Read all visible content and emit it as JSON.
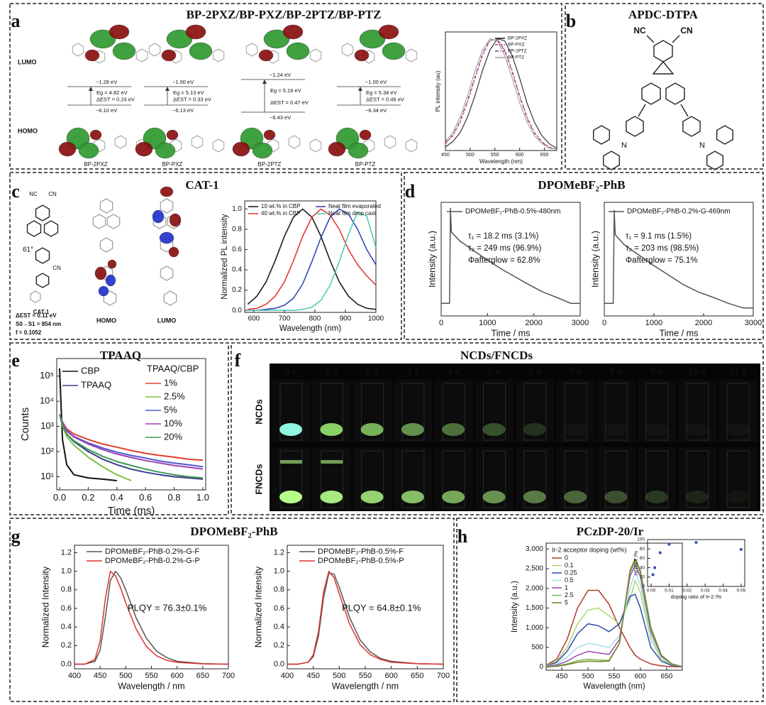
{
  "panels": [
    {
      "label": "a",
      "title": "BP-2PXZ/BP-PXZ/BP-2PTZ/BP-PTZ"
    },
    {
      "label": "b",
      "title": "APDC-DTPA"
    },
    {
      "label": "c",
      "title": "CAT-1"
    },
    {
      "label": "d",
      "title": "DPOMeBF₂-PhB"
    },
    {
      "label": "e",
      "title": "TPAAQ"
    },
    {
      "label": "f",
      "title": "NCDs/FNCDs"
    },
    {
      "label": "g",
      "title": "DPOMeBF₂-PhB"
    },
    {
      "label": "h",
      "title": "PCzDP-20/Ir"
    }
  ],
  "orbitals": {
    "lumo": "LUMO",
    "homo": "HOMO",
    "molecules": [
      {
        "name": "BP-2PXZ",
        "lumo": "−1.28 eV",
        "gap": "Eg = 4.82 eV",
        "dest": "ΔEST = 0.24 eV",
        "homo": "−6.10 eV"
      },
      {
        "name": "BP-PXZ",
        "lumo": "−1.00 eV",
        "gap": "Eg = 5.13 eV",
        "dest": "ΔEST = 0.33 eV",
        "homo": "−6.13 eV"
      },
      {
        "name": "BP-2PTZ",
        "lumo": "−1.24 eV",
        "gap": "Eg = 5.19 eV",
        "dest": "ΔEST = 0.47 eV",
        "homo": "−6.43 eV"
      },
      {
        "name": "BP-PTZ",
        "lumo": "−1.00 eV",
        "gap": "Eg = 5.34 eV",
        "dest": "ΔEST = 0.46 eV",
        "homo": "−6.34 eV"
      }
    ]
  },
  "apdc": {
    "nc": "NC",
    "cn": "CN",
    "n": "N"
  },
  "cat1": {
    "nc": "NC",
    "cn": "CN",
    "angle": "61°",
    "name": "CAT-1",
    "dest": "ΔEST = 0.11 eV",
    "s0s1": "S0→S1 = 854 nm",
    "f": "f = 0.1052",
    "homo": "HOMO",
    "lumo": "LUMO"
  },
  "photos": {
    "times": [
      "0 s",
      "1 s",
      "2 s",
      "3 s",
      "4 s",
      "5 s",
      "6 s",
      "7 s",
      "8 s",
      "9 s",
      "10 s",
      "11 s"
    ],
    "rows": [
      "NCDs",
      "FNCDs"
    ]
  },
  "chart_data": [
    {
      "type": "line",
      "xlabel": "Wavelength (nm)",
      "ylabel": "PL intensity (au)",
      "xlim": [
        450,
        675
      ],
      "ylim": [
        0,
        1.05
      ],
      "xticks": [
        450,
        500,
        550,
        600,
        650
      ],
      "x": [
        450,
        465,
        480,
        495,
        510,
        525,
        540,
        555,
        570,
        585,
        600,
        615,
        630,
        645,
        660,
        675
      ],
      "series": [
        {
          "name": "BP-2PXZ",
          "color": "#111111",
          "line_style": "solid",
          "values": [
            0.03,
            0.08,
            0.16,
            0.3,
            0.49,
            0.71,
            0.89,
            0.99,
            0.97,
            0.84,
            0.64,
            0.42,
            0.25,
            0.13,
            0.06,
            0.02
          ]
        },
        {
          "name": "BP-PXZ",
          "color": "#c0407a",
          "line_style": "dashed",
          "values": [
            0.06,
            0.13,
            0.25,
            0.43,
            0.64,
            0.84,
            0.97,
            0.99,
            0.89,
            0.71,
            0.49,
            0.3,
            0.16,
            0.08,
            0.03,
            0.01
          ]
        },
        {
          "name": "BP-2PTZ",
          "color": "#8a3a8a",
          "line_style": "dashdot",
          "values": [
            0.07,
            0.14,
            0.27,
            0.45,
            0.66,
            0.86,
            0.98,
            0.98,
            0.88,
            0.69,
            0.47,
            0.28,
            0.15,
            0.07,
            0.03,
            0.01
          ]
        },
        {
          "name": "BP-PTZ",
          "color": "#999999",
          "line_style": "solid",
          "values": [
            0.08,
            0.16,
            0.3,
            0.49,
            0.71,
            0.89,
            0.99,
            0.97,
            0.84,
            0.64,
            0.42,
            0.25,
            0.13,
            0.06,
            0.02,
            0.01
          ]
        }
      ]
    },
    {
      "type": "line",
      "xlabel": "Wavelength (nm)",
      "ylabel": "Normalized PL intensity",
      "xlim": [
        570,
        1000
      ],
      "ylim": [
        -0.02,
        1.08
      ],
      "xticks": [
        600,
        700,
        800,
        900,
        1000
      ],
      "yticks": [
        {
          "value": 0,
          "label": "0.0"
        },
        0.2,
        0.4,
        0.6,
        0.8,
        {
          "value": 1,
          "label": "1.0"
        }
      ],
      "x": [
        580,
        610,
        640,
        670,
        700,
        730,
        760,
        790,
        820,
        850,
        880,
        910,
        940,
        970,
        1000
      ],
      "series": [
        {
          "name": "10 wt.% in CBP",
          "color": "#111111",
          "values": [
            0.06,
            0.14,
            0.28,
            0.49,
            0.73,
            0.92,
            1.0,
            0.92,
            0.73,
            0.49,
            0.28,
            0.14,
            0.06,
            0.02,
            0.01
          ]
        },
        {
          "name": "40 wt.% in CBP",
          "color": "#e0302a",
          "values": [
            0.01,
            0.02,
            0.06,
            0.14,
            0.28,
            0.49,
            0.73,
            0.92,
            1.0,
            0.94,
            0.8,
            0.6,
            0.45,
            0.34,
            0.25
          ]
        },
        {
          "name": "Neat film evaporated",
          "color": "#2a3cb0",
          "values": [
            0,
            0,
            0.01,
            0.02,
            0.05,
            0.12,
            0.26,
            0.48,
            0.72,
            0.92,
            1.0,
            0.95,
            0.8,
            0.6,
            0.45
          ]
        },
        {
          "name": "Neat film drop cast",
          "color": "#4cc8b0",
          "values": [
            0,
            0,
            0,
            0,
            0,
            0,
            0.01,
            0.03,
            0.1,
            0.25,
            0.48,
            0.75,
            0.97,
            0.93,
            0.62
          ]
        }
      ]
    },
    {
      "type": "line",
      "ylog": true,
      "xlabel": "Time / ms",
      "ylabel": "Intensity (a.u.)",
      "xlim": [
        0,
        3000
      ],
      "ylim": [
        1,
        20000
      ],
      "xticks": [
        0,
        1000,
        2000,
        3000
      ],
      "x": [
        0,
        180,
        200,
        220,
        400,
        700,
        1000,
        1300,
        1600,
        1900,
        2200,
        2500,
        2800,
        3000
      ],
      "series": [
        {
          "name": "DPOMeBF₂-PhB-0.5%-480nm",
          "color": "#555555",
          "values": [
            3,
            3,
            12000,
            1500,
            700,
            300,
            130,
            60,
            30,
            15,
            8,
            5,
            3,
            3
          ]
        }
      ],
      "annotations": [
        "τ₁ = 18.2 ms (3.1%)",
        "τ₂ = 249 ms (96.9%)",
        "Φafterglow = 62.8%"
      ]
    },
    {
      "type": "line",
      "ylog": true,
      "xlabel": "Time / ms",
      "ylabel": "Intensity (a.u.)",
      "xlim": [
        0,
        3000
      ],
      "ylim": [
        1,
        20000
      ],
      "xticks": [
        0,
        1000,
        2000,
        3000
      ],
      "x": [
        0,
        180,
        200,
        220,
        400,
        700,
        1000,
        1300,
        1600,
        1900,
        2200,
        2500,
        2800,
        3000
      ],
      "series": [
        {
          "name": "DPOMeBF₂-PhB-0.2%-G-469nm",
          "color": "#555555",
          "values": [
            3,
            3,
            10000,
            1200,
            500,
            200,
            80,
            35,
            15,
            8,
            5,
            3,
            2,
            2
          ]
        }
      ],
      "annotations": [
        "τ₁ = 9.1 ms (1.5%)",
        "τ₂ = 203 ms (98.5%)",
        "Φafterglow = 75.1%"
      ]
    },
    {
      "type": "line",
      "ylog": true,
      "xlabel": "Time (ms)",
      "ylabel": "Counts",
      "legend_title": "TPAAQ/CBP",
      "xlim": [
        -0.02,
        1.02
      ],
      "ylim": [
        3,
        500000
      ],
      "xticks": [
        {
          "value": 0,
          "label": "0.0"
        },
        0.2,
        0.4,
        0.6,
        0.8,
        {
          "value": 1,
          "label": "1.0"
        }
      ],
      "yticks": [
        {
          "value": 10,
          "label": "10¹"
        },
        {
          "value": 100,
          "label": "10²"
        },
        {
          "value": 1000,
          "label": "10³"
        },
        {
          "value": 10000,
          "label": "10⁴"
        },
        {
          "value": 100000,
          "label": "10⁵"
        }
      ],
      "x": [
        0,
        0.02,
        0.05,
        0.1,
        0.2,
        0.3,
        0.4,
        0.5,
        0.6,
        0.7,
        0.8,
        0.9,
        1.0
      ],
      "series": [
        {
          "name": "CBP",
          "color": "#111111",
          "values": [
            200000,
            300,
            30,
            12,
            9,
            8,
            7,
            null,
            null,
            null,
            null,
            null,
            null
          ]
        },
        {
          "name": "TPAAQ",
          "color": "#3b3b8f",
          "values": [
            3000,
            1200,
            500,
            250,
            100,
            50,
            30,
            20,
            15,
            12,
            10,
            9,
            8
          ]
        },
        {
          "name": "1%",
          "color": "#e0402a",
          "values": [
            3000,
            1500,
            800,
            500,
            300,
            200,
            150,
            110,
            85,
            70,
            60,
            50,
            45
          ]
        },
        {
          "name": "2.5%",
          "color": "#7cc043",
          "values": [
            3000,
            1000,
            400,
            180,
            60,
            25,
            12,
            7,
            null,
            null,
            null,
            null,
            null
          ]
        },
        {
          "name": "5%",
          "color": "#4a5bd4",
          "values": [
            3000,
            1400,
            700,
            400,
            220,
            140,
            95,
            70,
            55,
            42,
            35,
            30,
            25
          ]
        },
        {
          "name": "10%",
          "color": "#a040b0",
          "values": [
            3000,
            1300,
            650,
            380,
            200,
            120,
            80,
            58,
            44,
            35,
            28,
            24,
            20
          ]
        },
        {
          "name": "20%",
          "color": "#3d9a50",
          "values": [
            3000,
            1100,
            500,
            270,
            120,
            65,
            40,
            28,
            20,
            15,
            12,
            10,
            9
          ]
        }
      ]
    },
    {
      "type": "line",
      "xlabel": "Wavelength / nm",
      "ylabel": "Normalized Intensity",
      "xlim": [
        400,
        700
      ],
      "ylim": [
        -0.05,
        1.28
      ],
      "xticks": [
        400,
        450,
        500,
        550,
        600,
        650,
        700
      ],
      "yticks": [
        {
          "value": 0,
          "label": "0.0"
        },
        0.2,
        0.4,
        0.6,
        0.8,
        {
          "value": 1,
          "label": "1.0"
        },
        1.2
      ],
      "x": [
        400,
        420,
        440,
        450,
        460,
        470,
        480,
        490,
        500,
        520,
        540,
        560,
        580,
        600,
        650,
        700
      ],
      "series": [
        {
          "name": "DPOMeBF₂-PhB-0.2%-G-F",
          "color": "#555555",
          "values": [
            0,
            0,
            0.03,
            0.15,
            0.5,
            0.9,
            1.0,
            0.93,
            0.8,
            0.5,
            0.28,
            0.14,
            0.07,
            0.03,
            0.005,
            0
          ]
        },
        {
          "name": "DPOMeBF₂-PhB-0.2%-G-P",
          "color": "#e03030",
          "values": [
            0,
            0,
            0.05,
            0.25,
            0.7,
            1.0,
            0.95,
            0.82,
            0.66,
            0.38,
            0.19,
            0.09,
            0.04,
            0.02,
            0.003,
            0
          ]
        }
      ],
      "annotations": [
        "PLQY = 76.3±0.1%"
      ]
    },
    {
      "type": "line",
      "xlabel": "Wavelength / nm",
      "ylabel": "Normalized Intensity",
      "xlim": [
        400,
        700
      ],
      "ylim": [
        -0.05,
        1.28
      ],
      "xticks": [
        400,
        450,
        500,
        550,
        600,
        650,
        700
      ],
      "yticks": [
        {
          "value": 0,
          "label": "0.0"
        },
        0.2,
        0.4,
        0.6,
        0.8,
        {
          "value": 1,
          "label": "1.0"
        },
        1.2
      ],
      "x": [
        400,
        420,
        440,
        450,
        460,
        470,
        480,
        490,
        500,
        520,
        540,
        560,
        580,
        600,
        650,
        700
      ],
      "series": [
        {
          "name": "DPOMeBF₂-PhB-0.5%-F",
          "color": "#555555",
          "values": [
            0,
            0,
            0.02,
            0.08,
            0.3,
            0.72,
            0.98,
            0.97,
            0.83,
            0.5,
            0.26,
            0.13,
            0.06,
            0.03,
            0.005,
            0
          ]
        },
        {
          "name": "DPOMeBF₂-PhB-0.5%-P",
          "color": "#e03030",
          "values": [
            0,
            0,
            0.02,
            0.1,
            0.35,
            0.78,
            1.0,
            0.93,
            0.76,
            0.43,
            0.21,
            0.1,
            0.05,
            0.02,
            0.004,
            0
          ]
        }
      ],
      "annotations": [
        "PLQY = 64.8±0.1%"
      ]
    },
    {
      "type": "line",
      "xlabel": "Wavelength (nm)",
      "ylabel": "Intensity (a.u.)",
      "legend_title": "Ir-2 acceptor doping (wt%)",
      "xlim": [
        420,
        680
      ],
      "ylim": [
        -80,
        3150
      ],
      "xticks": [
        450,
        500,
        550,
        600,
        650
      ],
      "yticks": [
        0,
        500,
        {
          "value": 1000,
          "label": "1,000"
        },
        {
          "value": 1500,
          "label": "1,500"
        },
        {
          "value": 2000,
          "label": "2,000"
        },
        {
          "value": 2500,
          "label": "2,500"
        },
        {
          "value": 3000,
          "label": "3,000"
        }
      ],
      "x": [
        420,
        440,
        460,
        480,
        500,
        520,
        540,
        560,
        580,
        590,
        600,
        620,
        640,
        660,
        680
      ],
      "series": [
        {
          "name": "0",
          "color": "#b03a2e",
          "values": [
            50,
            200,
            700,
            1500,
            1950,
            1950,
            1600,
            1000,
            500,
            300,
            200,
            80,
            30,
            10,
            5
          ]
        },
        {
          "name": "0.1",
          "color": "#a8d86c",
          "values": [
            40,
            150,
            500,
            1100,
            1450,
            1500,
            1300,
            1100,
            1700,
            2200,
            1900,
            700,
            200,
            50,
            10
          ]
        },
        {
          "name": "0.25",
          "color": "#2a4bb0",
          "values": [
            30,
            120,
            400,
            850,
            1100,
            1050,
            900,
            1100,
            1800,
            1850,
            1500,
            500,
            150,
            40,
            10
          ]
        },
        {
          "name": "0.5",
          "color": "#a8dce8",
          "values": [
            20,
            80,
            250,
            500,
            600,
            560,
            500,
            800,
            2000,
            2400,
            2100,
            800,
            250,
            60,
            10
          ]
        },
        {
          "name": "1",
          "color": "#9a4ab0",
          "values": [
            15,
            50,
            150,
            300,
            400,
            360,
            320,
            700,
            2300,
            2600,
            2300,
            900,
            280,
            70,
            10
          ]
        },
        {
          "name": "2.5",
          "color": "#6cc04a",
          "values": [
            10,
            30,
            80,
            160,
            200,
            180,
            170,
            600,
            2400,
            2700,
            2400,
            950,
            300,
            70,
            10
          ]
        },
        {
          "name": "5",
          "color": "#7a7a2a",
          "values": [
            5,
            20,
            60,
            120,
            150,
            140,
            150,
            600,
            2450,
            2750,
            2450,
            1000,
            300,
            80,
            10
          ]
        }
      ]
    },
    {
      "type": "scatter",
      "xlabel": "doping ratio of Ir-2 /%",
      "ylabel": "ηFRET /%",
      "xlim": [
        -0.002,
        0.052
      ],
      "ylim": [
        0,
        100
      ],
      "xticks": [
        {
          "value": 0,
          "label": "0.00"
        },
        {
          "value": 0.01,
          "label": "0.01"
        },
        {
          "value": 0.02,
          "label": "0.02"
        },
        {
          "value": 0.03,
          "label": "0.03"
        },
        {
          "value": 0.04,
          "label": "0.04"
        },
        {
          "value": 0.05,
          "label": "0.05"
        }
      ],
      "yticks": [
        0,
        20,
        40,
        60,
        80,
        100
      ],
      "color": "#2a4bb0",
      "x": [
        0.001,
        0.002,
        0.005,
        0.01,
        0.025,
        0.05
      ],
      "values": [
        25,
        40,
        72,
        90,
        94,
        79
      ]
    }
  ]
}
